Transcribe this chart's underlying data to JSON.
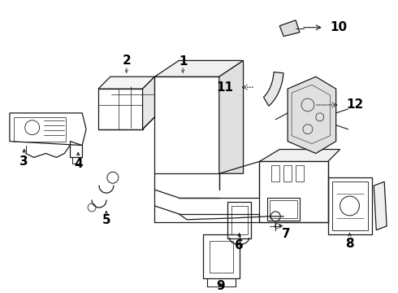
{
  "bg_color": "#ffffff",
  "lc": "#1a1a1a",
  "lw": 0.9
}
